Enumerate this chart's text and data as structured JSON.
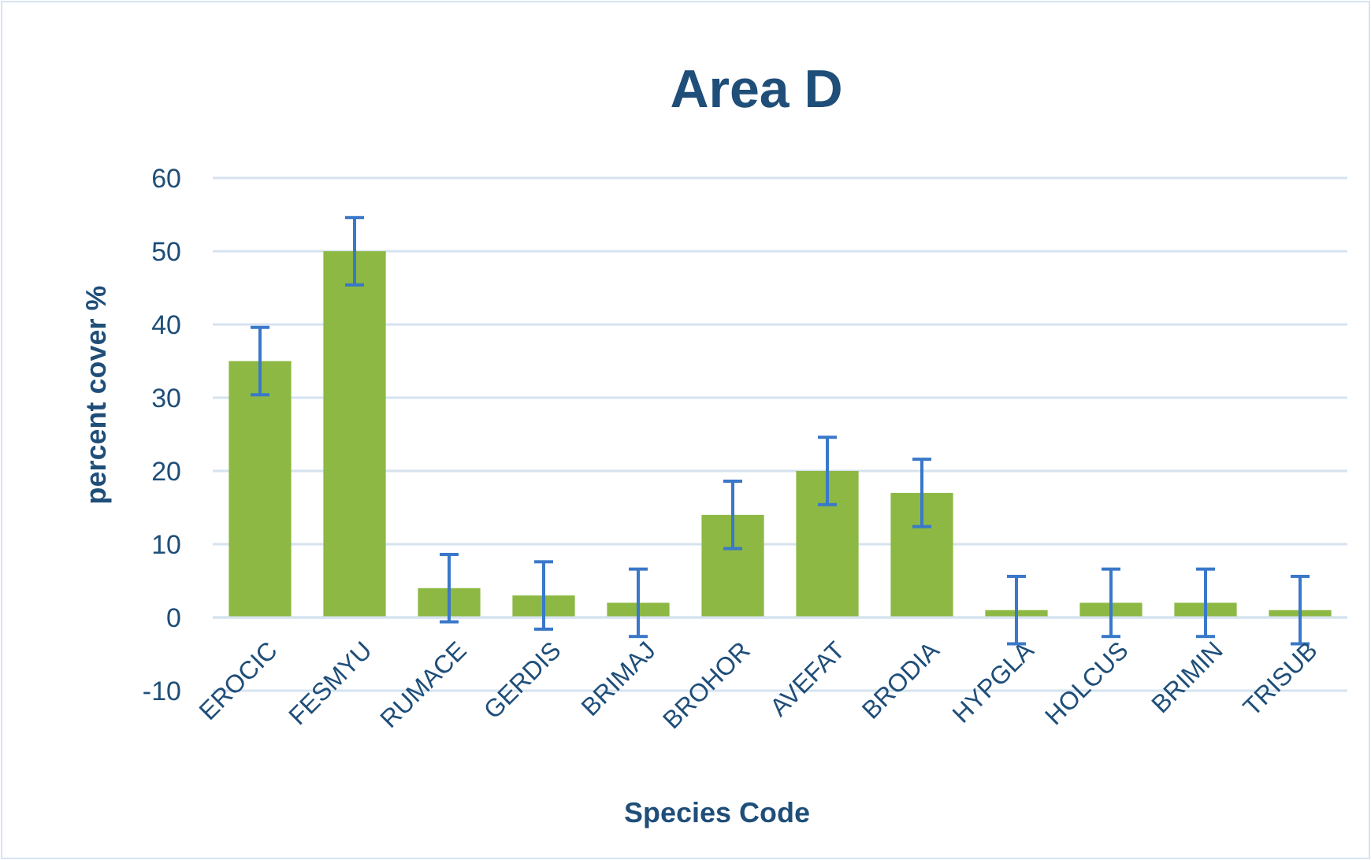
{
  "chart_data": {
    "type": "bar",
    "title": "Area D",
    "xlabel": "Species Code",
    "ylabel": "percent cover %",
    "categories": [
      "EROCIC",
      "FESMYU",
      "RUMACE",
      "GERDIS",
      "BRIMAJ",
      "BROHOR",
      "AVEFAT",
      "BRODIA",
      "HYPGLA",
      "HOLCUS",
      "BRIMIN",
      "TRISUB"
    ],
    "values": [
      35,
      50,
      4,
      3,
      2,
      14,
      20,
      17,
      1,
      2,
      2,
      1
    ],
    "errors": [
      4.6,
      4.6,
      4.6,
      4.6,
      4.6,
      4.6,
      4.6,
      4.6,
      4.6,
      4.6,
      4.6,
      4.6
    ],
    "color": "#8db843",
    "ylim": [
      -10,
      60
    ],
    "yticks": [
      -10,
      0,
      10,
      20,
      30,
      40,
      50,
      60
    ],
    "grid": "y"
  }
}
